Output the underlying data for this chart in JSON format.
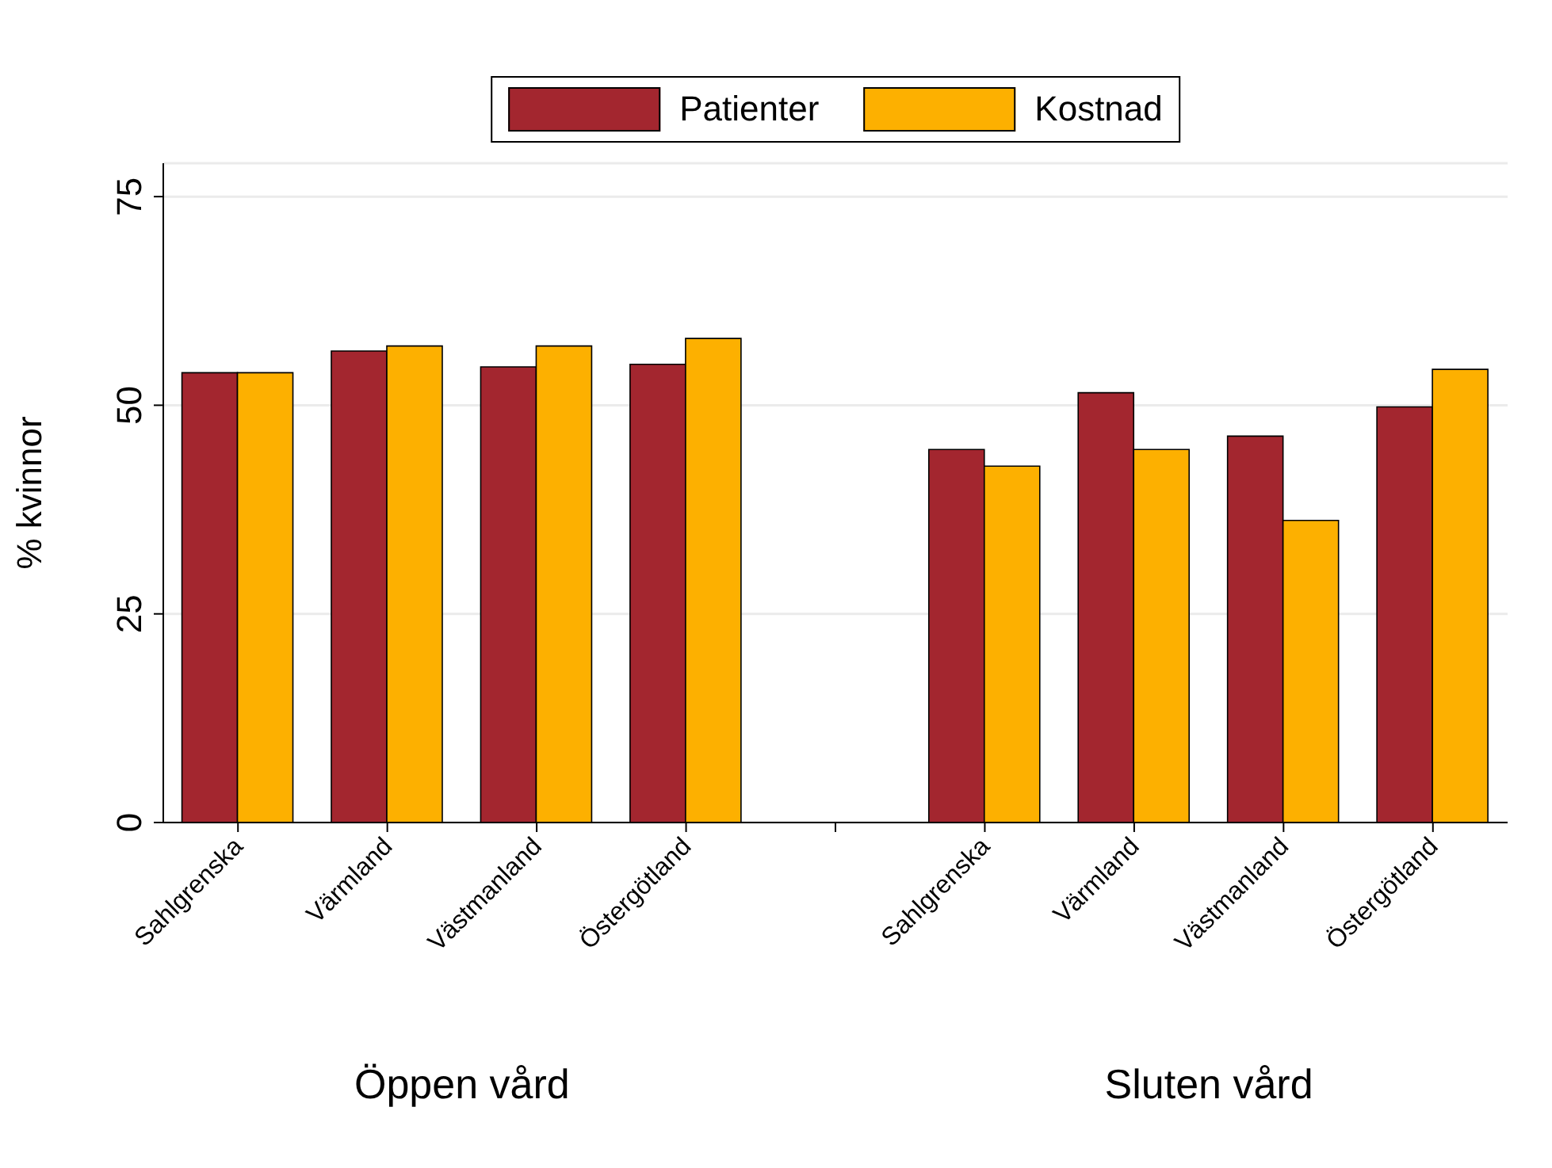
{
  "chart_data": {
    "type": "bar",
    "ylabel": "% kvinnor",
    "categories": [
      "Sahlgrenska",
      "Värmland",
      "Västmanland",
      "Östergötland",
      null,
      "Sahlgrenska",
      "Värmland",
      "Västmanland",
      "Östergötland"
    ],
    "series": [
      {
        "name": "Patienter",
        "color": "#a3262f",
        "values": [
          53.9,
          56.5,
          54.6,
          54.9,
          null,
          44.7,
          51.5,
          46.3,
          49.8
        ]
      },
      {
        "name": "Kostnad",
        "color": "#fdb000",
        "values": [
          53.9,
          57.1,
          57.1,
          58.0,
          null,
          42.7,
          44.7,
          36.2,
          54.3
        ]
      }
    ],
    "ylim": [
      0,
      79
    ],
    "yticks": [
      0,
      25,
      50,
      75
    ],
    "grid": "y",
    "legend": "top",
    "annotations": [
      "Öppen vård",
      "Sluten vård"
    ]
  }
}
